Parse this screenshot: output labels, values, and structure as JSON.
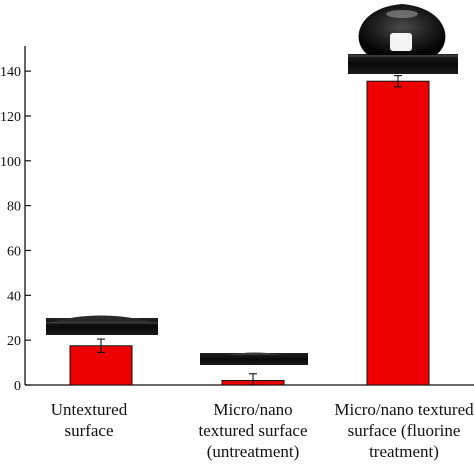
{
  "chart_data": {
    "type": "bar",
    "title": "",
    "xlabel": "",
    "ylabel": "",
    "ylim": [
      0,
      150
    ],
    "yticks": [
      0,
      20,
      40,
      60,
      80,
      100,
      120,
      140
    ],
    "ytick_labels": [
      "0",
      "20",
      "40",
      "60",
      "80",
      "100",
      "120",
      "140"
    ],
    "categories": [
      [
        "Untextured",
        "surface"
      ],
      [
        "Micro/nano",
        "textured surface",
        "(untreatment)"
      ],
      [
        "Micro/nano textured",
        "surface  (fluorine",
        "treatment)"
      ]
    ],
    "values": [
      17.5,
      2,
      135.5
    ],
    "errors": [
      3,
      3,
      2.5
    ],
    "bar_color": "#ee0000",
    "insets": [
      "water-droplet-flat",
      "water-droplet-minimal",
      "water-droplet-spherical"
    ]
  }
}
